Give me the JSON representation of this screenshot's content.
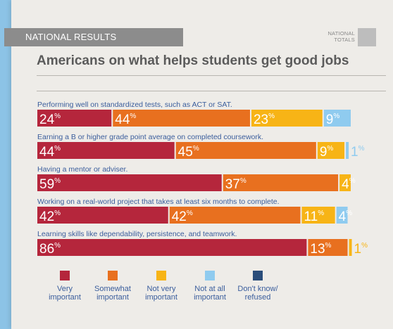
{
  "header": {
    "banner": "NATIONAL RESULTS",
    "totals_label": "NATIONAL TOTALS"
  },
  "chart_data": {
    "type": "bar",
    "orientation": "horizontal",
    "stacked": true,
    "title": "Americans on what helps students get good jobs",
    "categories": [
      "Performing well on standardized tests, such as ACT or SAT.",
      "Earning a B or higher grade point average on completed coursework.",
      "Having a mentor or adviser.",
      "Working on a real-world project that takes at least six months to complete.",
      "Learning skills like dependability, persistence, and teamwork."
    ],
    "series": [
      {
        "name": "Very important",
        "color": "#b5263c",
        "values": [
          24,
          44,
          59,
          42,
          86
        ]
      },
      {
        "name": "Somewhat important",
        "color": "#e8701f",
        "values": [
          44,
          45,
          37,
          42,
          13
        ]
      },
      {
        "name": "Not very important",
        "color": "#f7b416",
        "values": [
          23,
          9,
          4,
          11,
          1
        ]
      },
      {
        "name": "Not at all important",
        "color": "#8fcbef",
        "values": [
          9,
          1,
          0,
          4,
          0
        ]
      },
      {
        "name": "Don't know/ refused",
        "color": "#2a4d7a",
        "values": [
          0,
          0,
          0,
          0,
          0
        ]
      }
    ],
    "value_suffix": "%",
    "legend_position": "bottom"
  },
  "legend": [
    {
      "line1": "Very",
      "line2": "important",
      "color": "#b5263c"
    },
    {
      "line1": "Somewhat",
      "line2": "important",
      "color": "#e8701f"
    },
    {
      "line1": "Not very",
      "line2": "important",
      "color": "#f7b416"
    },
    {
      "line1": "Not at all",
      "line2": "important",
      "color": "#8fcbef"
    },
    {
      "line1": "Don't know/",
      "line2": "refused",
      "color": "#2a4d7a"
    }
  ]
}
